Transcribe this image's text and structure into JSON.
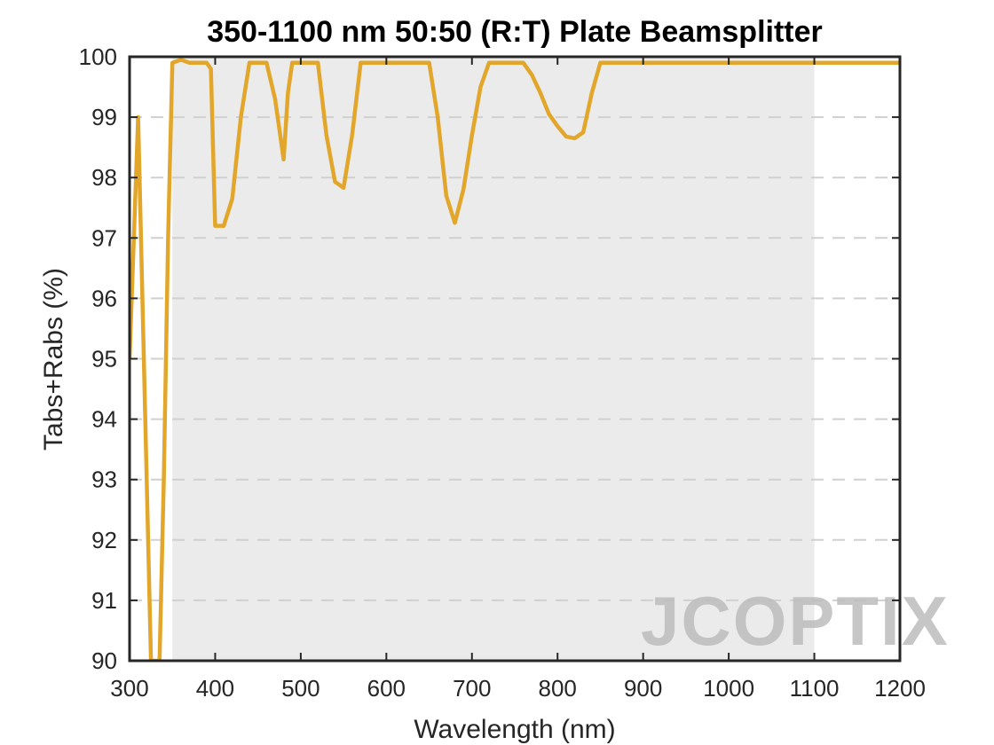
{
  "chart_data": {
    "type": "line",
    "title": "350-1100 nm 50:50 (R:T) Plate Beamsplitter",
    "xlabel": "Wavelength (nm)",
    "ylabel": "Tabs+Rabs (%)",
    "xlim": [
      300,
      1200
    ],
    "ylim": [
      90,
      100
    ],
    "xticks": [
      300,
      400,
      500,
      600,
      700,
      800,
      900,
      1000,
      1100,
      1200
    ],
    "yticks": [
      90,
      91,
      92,
      93,
      94,
      95,
      96,
      97,
      98,
      99,
      100
    ],
    "grid": "horizontal dashed",
    "shaded_band": {
      "x_start": 350,
      "x_end": 1100,
      "color": "#ebebeb"
    },
    "series": [
      {
        "color": "#e2a62b",
        "x": [
          300,
          310,
          320,
          325,
          330,
          335,
          340,
          345,
          350,
          360,
          370,
          380,
          390,
          395,
          400,
          410,
          420,
          430,
          440,
          450,
          460,
          470,
          480,
          485,
          490,
          500,
          510,
          520,
          530,
          540,
          550,
          560,
          570,
          580,
          590,
          600,
          610,
          620,
          630,
          640,
          650,
          660,
          670,
          680,
          690,
          700,
          710,
          720,
          730,
          740,
          750,
          760,
          770,
          780,
          790,
          800,
          810,
          820,
          830,
          840,
          850,
          860,
          870,
          880,
          900,
          950,
          1000,
          1050,
          1100,
          1150,
          1200
        ],
        "values": [
          95.0,
          99.0,
          93.0,
          90.0,
          90.0,
          90.0,
          93.0,
          97.0,
          99.9,
          99.95,
          99.9,
          99.9,
          99.9,
          99.8,
          97.2,
          97.2,
          97.65,
          99.0,
          99.9,
          99.9,
          99.9,
          99.3,
          98.3,
          99.4,
          99.9,
          99.9,
          99.9,
          99.9,
          98.7,
          97.93,
          97.83,
          98.7,
          99.9,
          99.9,
          99.9,
          99.9,
          99.9,
          99.9,
          99.9,
          99.9,
          99.9,
          99.0,
          97.7,
          97.25,
          97.8,
          98.7,
          99.5,
          99.9,
          99.9,
          99.9,
          99.9,
          99.9,
          99.7,
          99.4,
          99.05,
          98.85,
          98.68,
          98.65,
          98.75,
          99.4,
          99.9,
          99.9,
          99.9,
          99.9,
          99.9,
          99.9,
          99.9,
          99.9,
          99.9,
          99.9,
          99.9
        ]
      }
    ]
  },
  "watermark": {
    "text": "JCOPTIX"
  }
}
